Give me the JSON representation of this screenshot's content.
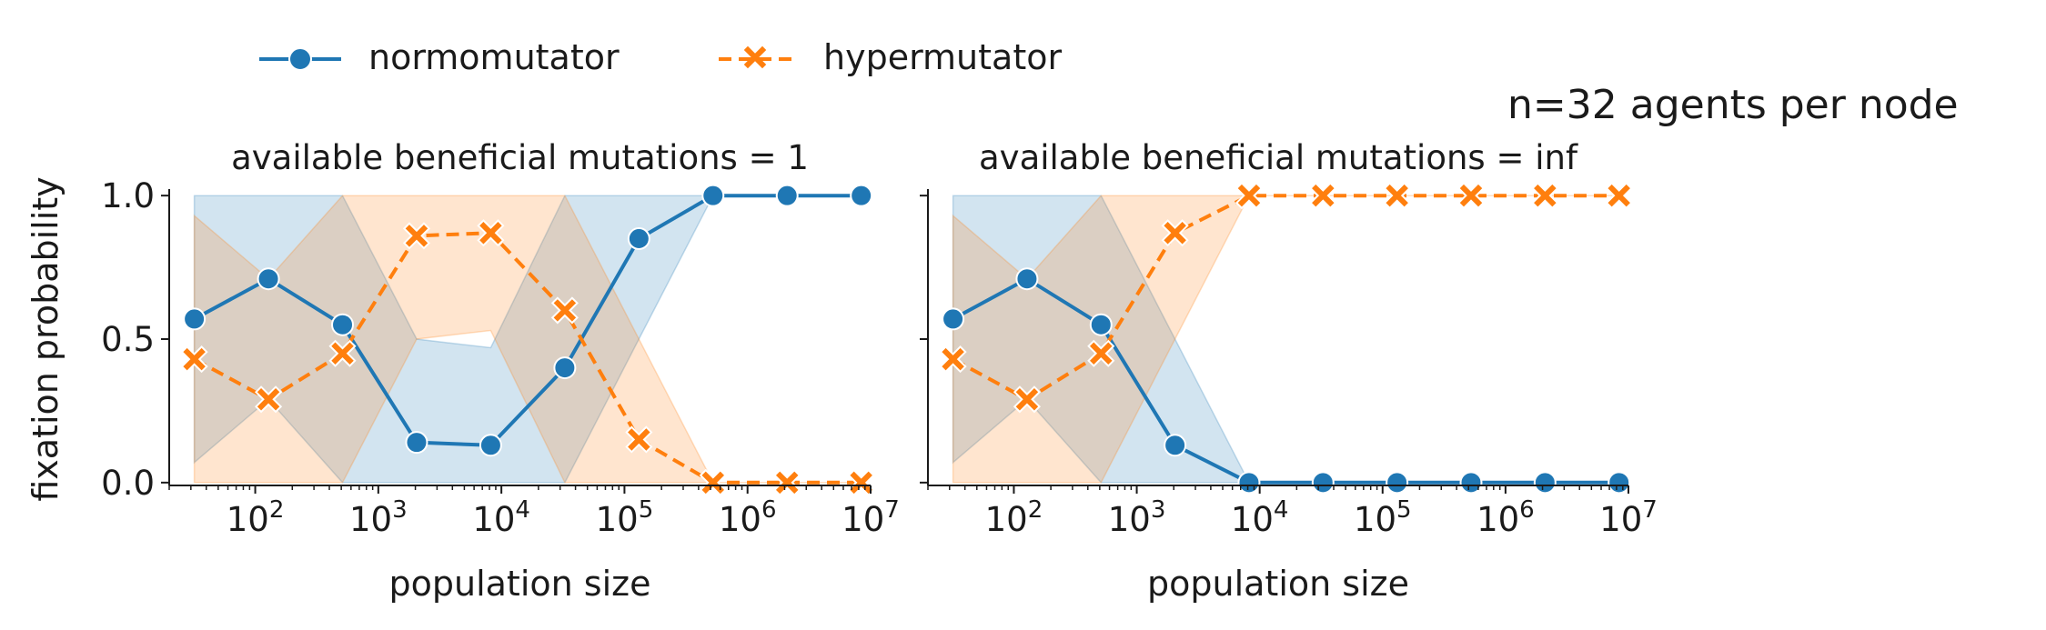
{
  "figure": {
    "suptitle": "n=32 agents per node"
  },
  "legend": {
    "placement": "top-left",
    "entries": [
      {
        "label": "normomutator",
        "color": "#1f77b4",
        "marker": "circle",
        "linestyle": "solid"
      },
      {
        "label": "hypermutator",
        "color": "#ff7f0e",
        "marker": "x",
        "linestyle": "dashed"
      }
    ]
  },
  "chart_data": [
    {
      "type": "line",
      "title": "available beneficial mutations = 1",
      "xlabel": "population size",
      "ylabel": "fixation probability",
      "xscale": "log",
      "xlim": [
        20,
        10000000
      ],
      "ylim": [
        -0.01,
        1.01
      ],
      "xticks": [
        {
          "value": 100,
          "base": "10",
          "exp": "2"
        },
        {
          "value": 1000,
          "base": "10",
          "exp": "3"
        },
        {
          "value": 10000,
          "base": "10",
          "exp": "4"
        },
        {
          "value": 100000,
          "base": "10",
          "exp": "5"
        },
        {
          "value": 1000000,
          "base": "10",
          "exp": "6"
        },
        {
          "value": 10000000,
          "base": "10",
          "exp": "7"
        }
      ],
      "yticks": [
        {
          "value": 0.0,
          "label": "0.0"
        },
        {
          "value": 0.5,
          "label": "0.5"
        },
        {
          "value": 1.0,
          "label": "1.0"
        }
      ],
      "x": [
        32,
        128,
        512,
        2048,
        8192,
        32768,
        131072,
        524288,
        2097152,
        8388608
      ],
      "series": [
        {
          "name": "normomutator",
          "color": "#1f77b4",
          "values": [
            0.57,
            0.71,
            0.55,
            0.14,
            0.13,
            0.4,
            0.85,
            1.0,
            1.0,
            1.0
          ],
          "ci_low": [
            0.07,
            0.29,
            0.0,
            0.0,
            0.0,
            0.0,
            0.5,
            1.0,
            1.0,
            1.0
          ],
          "ci_high": [
            1.0,
            1.0,
            1.0,
            0.5,
            0.47,
            1.0,
            1.0,
            1.0,
            1.0,
            1.0
          ]
        },
        {
          "name": "hypermutator",
          "color": "#ff7f0e",
          "values": [
            0.43,
            0.29,
            0.45,
            0.86,
            0.87,
            0.6,
            0.15,
            0.0,
            0.0,
            0.0
          ],
          "ci_low": [
            0.0,
            0.0,
            0.0,
            0.5,
            0.53,
            0.0,
            0.0,
            0.0,
            0.0,
            0.0
          ],
          "ci_high": [
            0.93,
            0.71,
            1.0,
            1.0,
            1.0,
            1.0,
            0.5,
            0.0,
            0.0,
            0.0
          ]
        }
      ]
    },
    {
      "type": "line",
      "title": "available beneficial mutations = inf",
      "xlabel": "population size",
      "ylabel": "",
      "xscale": "log",
      "xlim": [
        20,
        10000000
      ],
      "ylim": [
        -0.01,
        1.01
      ],
      "xticks": [
        {
          "value": 100,
          "base": "10",
          "exp": "2"
        },
        {
          "value": 1000,
          "base": "10",
          "exp": "3"
        },
        {
          "value": 10000,
          "base": "10",
          "exp": "4"
        },
        {
          "value": 100000,
          "base": "10",
          "exp": "5"
        },
        {
          "value": 1000000,
          "base": "10",
          "exp": "6"
        },
        {
          "value": 10000000,
          "base": "10",
          "exp": "7"
        }
      ],
      "yticks": [
        {
          "value": 0.0,
          "label": ""
        },
        {
          "value": 0.5,
          "label": ""
        },
        {
          "value": 1.0,
          "label": ""
        }
      ],
      "x": [
        32,
        128,
        512,
        2048,
        8192,
        32768,
        131072,
        524288,
        2097152,
        8388608
      ],
      "series": [
        {
          "name": "normomutator",
          "color": "#1f77b4",
          "values": [
            0.57,
            0.71,
            0.55,
            0.13,
            0.0,
            0.0,
            0.0,
            0.0,
            0.0,
            0.0
          ],
          "ci_low": [
            0.07,
            0.29,
            0.0,
            0.0,
            0.0,
            0.0,
            0.0,
            0.0,
            0.0,
            0.0
          ],
          "ci_high": [
            1.0,
            1.0,
            1.0,
            0.5,
            0.0,
            0.0,
            0.0,
            0.0,
            0.0,
            0.0
          ]
        },
        {
          "name": "hypermutator",
          "color": "#ff7f0e",
          "values": [
            0.43,
            0.29,
            0.45,
            0.87,
            1.0,
            1.0,
            1.0,
            1.0,
            1.0,
            1.0
          ],
          "ci_low": [
            0.0,
            0.0,
            0.0,
            0.5,
            1.0,
            1.0,
            1.0,
            1.0,
            1.0,
            1.0
          ],
          "ci_high": [
            0.93,
            0.71,
            1.0,
            1.0,
            1.0,
            1.0,
            1.0,
            1.0,
            1.0,
            1.0
          ]
        }
      ]
    }
  ]
}
